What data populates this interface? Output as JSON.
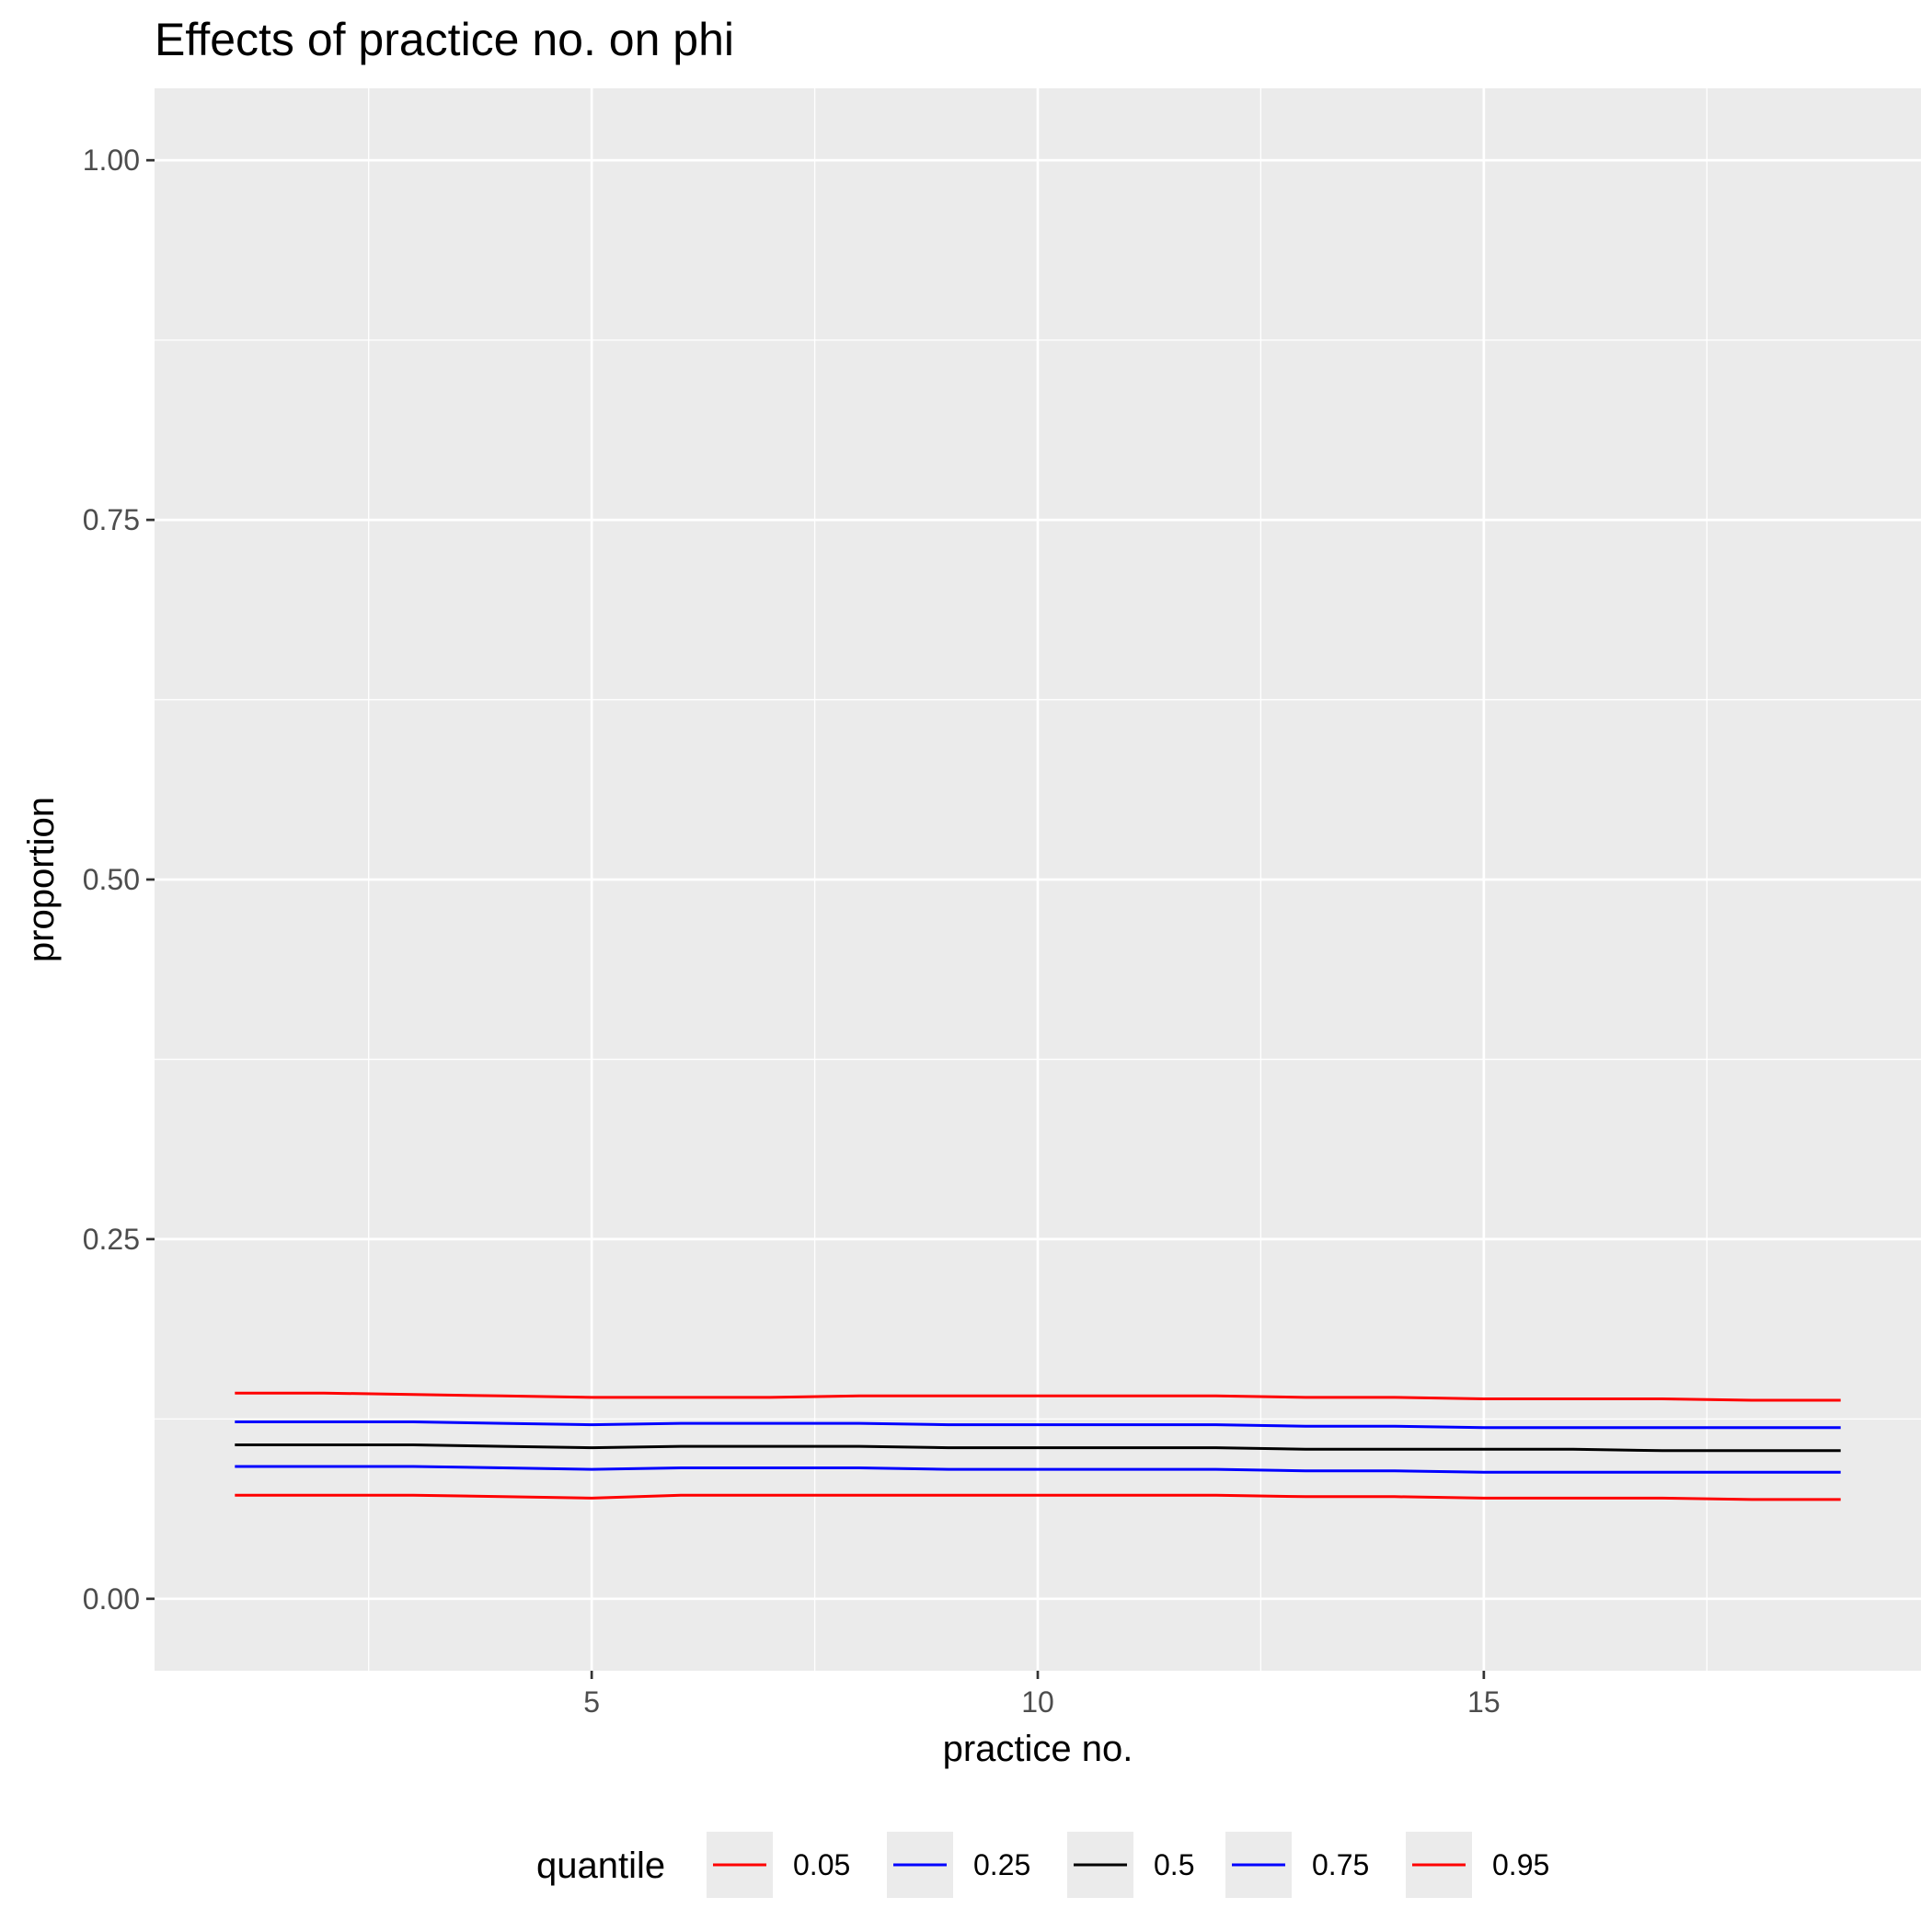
{
  "chart_data": {
    "type": "line",
    "title": "Effects of practice no. on phi",
    "xlabel": "practice no.",
    "ylabel": "proportion",
    "xlim": [
      0.1,
      19.9
    ],
    "ylim": [
      -0.05,
      1.05
    ],
    "x_ticks": [
      5,
      10,
      15
    ],
    "x_tick_labels": [
      "5",
      "10",
      "15"
    ],
    "y_ticks": [
      0.0,
      0.25,
      0.5,
      0.75,
      1.0
    ],
    "y_tick_labels": [
      "0.00",
      "0.25",
      "0.50",
      "0.75",
      "1.00"
    ],
    "grid": true,
    "legend_position": "bottom",
    "legend_title": "quantile",
    "x": [
      1,
      2,
      3,
      4,
      5,
      6,
      7,
      8,
      9,
      10,
      11,
      12,
      13,
      14,
      15,
      16,
      17,
      18,
      19
    ],
    "series": [
      {
        "name": "0.05",
        "color": "#ff0000",
        "values": [
          0.072,
          0.072,
          0.072,
          0.071,
          0.07,
          0.072,
          0.072,
          0.072,
          0.072,
          0.072,
          0.072,
          0.072,
          0.071,
          0.071,
          0.07,
          0.07,
          0.07,
          0.069,
          0.069
        ]
      },
      {
        "name": "0.25",
        "color": "#0000ff",
        "values": [
          0.092,
          0.092,
          0.092,
          0.091,
          0.09,
          0.091,
          0.091,
          0.091,
          0.09,
          0.09,
          0.09,
          0.09,
          0.089,
          0.089,
          0.088,
          0.088,
          0.088,
          0.088,
          0.088
        ]
      },
      {
        "name": "0.5",
        "color": "#000000",
        "values": [
          0.107,
          0.107,
          0.107,
          0.106,
          0.105,
          0.106,
          0.106,
          0.106,
          0.105,
          0.105,
          0.105,
          0.105,
          0.104,
          0.104,
          0.104,
          0.104,
          0.103,
          0.103,
          0.103
        ]
      },
      {
        "name": "0.75",
        "color": "#0000ff",
        "values": [
          0.123,
          0.123,
          0.123,
          0.122,
          0.121,
          0.122,
          0.122,
          0.122,
          0.121,
          0.121,
          0.121,
          0.121,
          0.12,
          0.12,
          0.119,
          0.119,
          0.119,
          0.119,
          0.119
        ]
      },
      {
        "name": "0.95",
        "color": "#ff0000",
        "values": [
          0.143,
          0.143,
          0.142,
          0.141,
          0.14,
          0.14,
          0.14,
          0.141,
          0.141,
          0.141,
          0.141,
          0.141,
          0.14,
          0.14,
          0.139,
          0.139,
          0.139,
          0.138,
          0.138
        ]
      }
    ]
  }
}
